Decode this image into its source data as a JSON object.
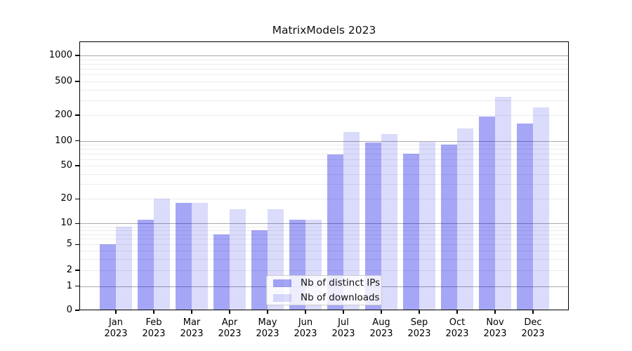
{
  "chart_data": {
    "type": "bar",
    "title": "MatrixModels 2023",
    "categories": [
      "Jan",
      "Feb",
      "Mar",
      "Apr",
      "May",
      "Jun",
      "Jul",
      "Aug",
      "Sep",
      "Oct",
      "Nov",
      "Dec"
    ],
    "year_label": "2023",
    "series": [
      {
        "name": "Nb of distinct IPs",
        "color": "#a6a6f6",
        "values": [
          5,
          11,
          18,
          7,
          8,
          11,
          68,
          95,
          70,
          90,
          193,
          160
        ]
      },
      {
        "name": "Nb of downloads",
        "color": "#dbdbfb",
        "values": [
          9,
          20,
          18,
          15,
          15,
          11,
          127,
          120,
          98,
          140,
          330,
          245
        ]
      }
    ],
    "xlabel": "",
    "ylabel": "",
    "yscale": "symlog",
    "yticks": [
      0,
      1,
      2,
      5,
      10,
      20,
      50,
      100,
      200,
      500,
      1000
    ],
    "ylim": [
      0,
      1500
    ],
    "grid": true,
    "legend_position": "lower-center"
  }
}
